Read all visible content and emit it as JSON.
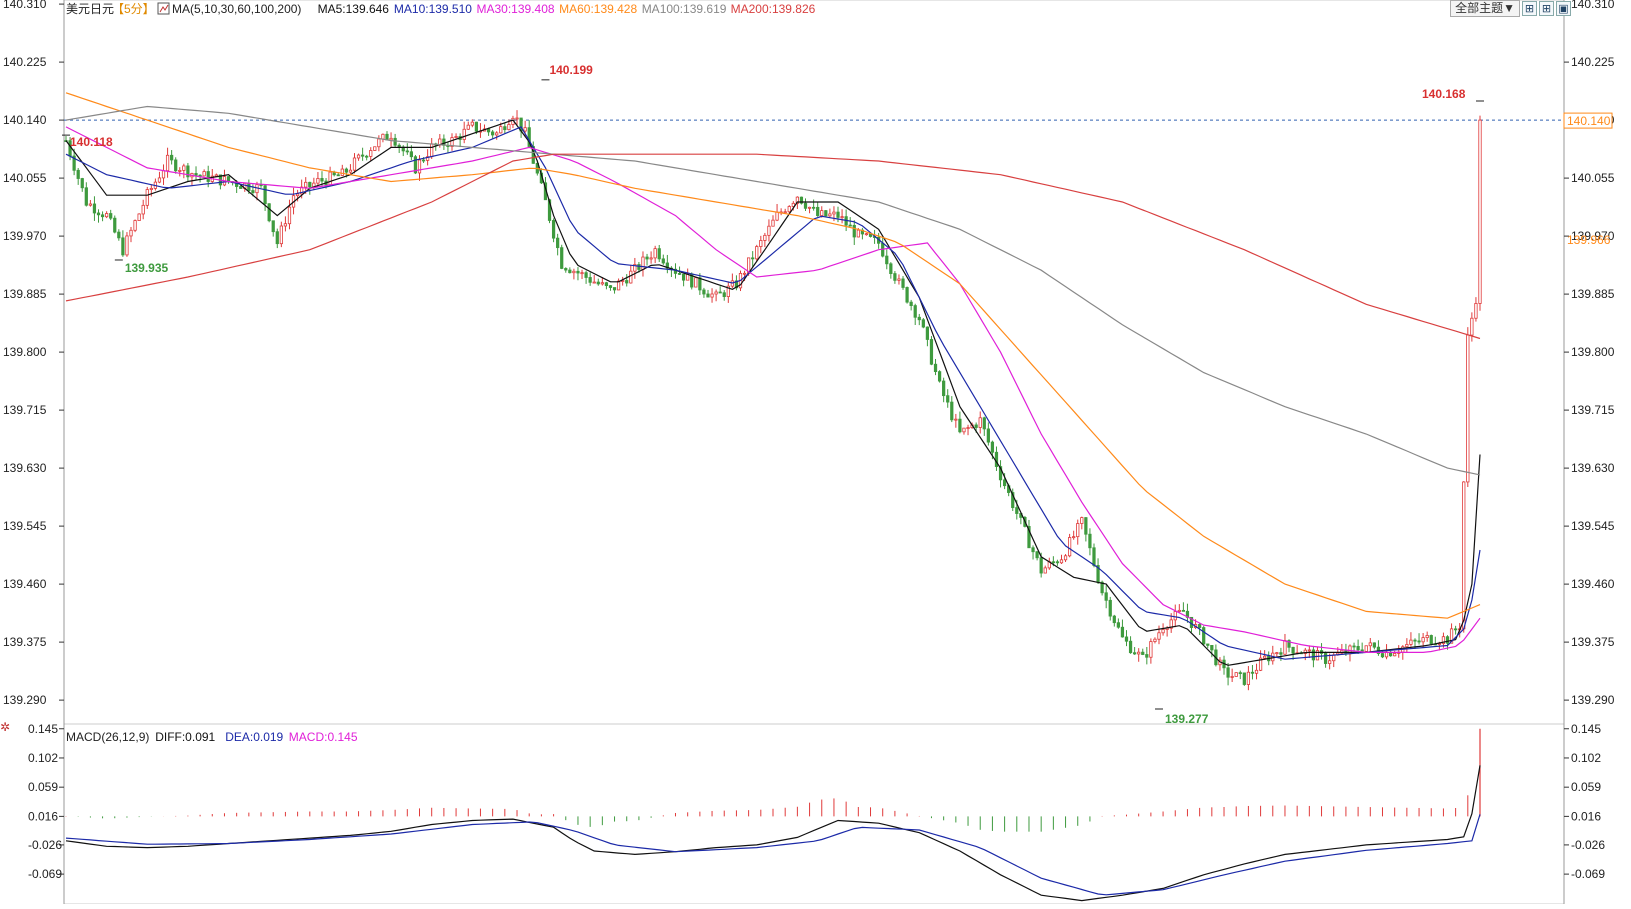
{
  "header": {
    "instrument": "美元日元",
    "period": "【5分】",
    "ma_legend": [
      {
        "label": "MA(5,10,30,60,100,200)",
        "color": "#222222"
      },
      {
        "label": "MA5:139.646",
        "color": "#111111"
      },
      {
        "label": "MA10:139.510",
        "color": "#1c2aa8"
      },
      {
        "label": "MA30:139.408",
        "color": "#e020d8"
      },
      {
        "label": "MA60:139.428",
        "color": "#ff8a1a"
      },
      {
        "label": "MA100:139.619",
        "color": "#888888"
      },
      {
        "label": "MA200:139.826",
        "color": "#d84040"
      }
    ],
    "theme_button": "全部主题▼",
    "toolbar_icons": [
      "grid-icon",
      "grid-icon",
      "window-icon"
    ]
  },
  "macd_legend": [
    {
      "label": "MACD(26,12,9)",
      "color": "#222222"
    },
    {
      "label": "DIFF:0.091",
      "color": "#111111"
    },
    {
      "label": "DEA:0.019",
      "color": "#1c2aa8"
    },
    {
      "label": "MACD:0.145",
      "color": "#e020d8"
    }
  ],
  "annotations": {
    "high_label": "140.199",
    "low_label": "139.277",
    "left_label_red": "140.118",
    "left_label_green": "139.935",
    "last_high_label": "140.168",
    "last_price_tag": "140.140",
    "ma_tag": "139.966"
  },
  "colors": {
    "up": "#e03a3a",
    "down": "#3e9a3e",
    "grid": "#dddddd",
    "axis": "#333333"
  },
  "chart_data": [
    {
      "type": "candlestick",
      "title": "美元日元【5分】",
      "y_ticks": [
        "140.310",
        "140.225",
        "140.140",
        "140.055",
        "139.970",
        "139.885",
        "139.800",
        "139.715",
        "139.630",
        "139.545",
        "139.460",
        "139.375",
        "139.290"
      ],
      "ylim": [
        139.255,
        140.316
      ],
      "current_price": 140.14,
      "close_anchors": [
        [
          0,
          140.11
        ],
        [
          5,
          140.02
        ],
        [
          10,
          140.0
        ],
        [
          14,
          139.95
        ],
        [
          20,
          140.03
        ],
        [
          25,
          140.08
        ],
        [
          32,
          140.06
        ],
        [
          40,
          140.05
        ],
        [
          48,
          140.04
        ],
        [
          52,
          139.96
        ],
        [
          56,
          140.03
        ],
        [
          62,
          140.05
        ],
        [
          68,
          140.06
        ],
        [
          75,
          140.1
        ],
        [
          80,
          140.12
        ],
        [
          86,
          140.07
        ],
        [
          90,
          140.1
        ],
        [
          95,
          140.11
        ],
        [
          100,
          140.13
        ],
        [
          106,
          140.12
        ],
        [
          110,
          140.15
        ],
        [
          113,
          140.12
        ],
        [
          118,
          140.02
        ],
        [
          122,
          139.93
        ],
        [
          128,
          139.91
        ],
        [
          134,
          139.89
        ],
        [
          140,
          139.92
        ],
        [
          145,
          139.95
        ],
        [
          150,
          139.92
        ],
        [
          155,
          139.9
        ],
        [
          160,
          139.88
        ],
        [
          165,
          139.9
        ],
        [
          170,
          139.95
        ],
        [
          175,
          140.0
        ],
        [
          180,
          140.03
        ],
        [
          185,
          140.0
        ],
        [
          190,
          140.0
        ],
        [
          195,
          139.97
        ],
        [
          200,
          139.96
        ],
        [
          205,
          139.9
        ],
        [
          210,
          139.85
        ],
        [
          215,
          139.75
        ],
        [
          220,
          139.68
        ],
        [
          225,
          139.7
        ],
        [
          230,
          139.62
        ],
        [
          235,
          139.55
        ],
        [
          240,
          139.48
        ],
        [
          245,
          139.5
        ],
        [
          250,
          139.55
        ],
        [
          255,
          139.45
        ],
        [
          260,
          139.38
        ],
        [
          265,
          139.35
        ],
        [
          270,
          139.4
        ],
        [
          275,
          139.42
        ],
        [
          280,
          139.38
        ],
        [
          285,
          139.33
        ],
        [
          290,
          139.32
        ],
        [
          295,
          139.35
        ],
        [
          300,
          139.37
        ],
        [
          305,
          139.36
        ],
        [
          310,
          139.35
        ],
        [
          315,
          139.36
        ],
        [
          320,
          139.37
        ],
        [
          325,
          139.36
        ],
        [
          330,
          139.37
        ],
        [
          335,
          139.38
        ],
        [
          340,
          139.38
        ],
        [
          343,
          139.4
        ],
        [
          345,
          139.82
        ],
        [
          347,
          139.88
        ],
        [
          348,
          140.14
        ]
      ],
      "ma_anchors": {
        "MA5": [
          [
            0,
            140.11
          ],
          [
            10,
            140.03
          ],
          [
            20,
            140.03
          ],
          [
            30,
            140.05
          ],
          [
            40,
            140.06
          ],
          [
            52,
            140.0
          ],
          [
            60,
            140.04
          ],
          [
            70,
            140.06
          ],
          [
            80,
            140.1
          ],
          [
            90,
            140.1
          ],
          [
            100,
            140.12
          ],
          [
            110,
            140.14
          ],
          [
            115,
            140.1
          ],
          [
            120,
            140.0
          ],
          [
            125,
            139.93
          ],
          [
            135,
            139.9
          ],
          [
            145,
            139.93
          ],
          [
            155,
            139.91
          ],
          [
            165,
            139.89
          ],
          [
            172,
            139.95
          ],
          [
            180,
            140.02
          ],
          [
            190,
            140.02
          ],
          [
            200,
            139.98
          ],
          [
            210,
            139.88
          ],
          [
            220,
            139.72
          ],
          [
            230,
            139.63
          ],
          [
            240,
            139.5
          ],
          [
            248,
            139.47
          ],
          [
            256,
            139.46
          ],
          [
            265,
            139.39
          ],
          [
            275,
            139.4
          ],
          [
            285,
            139.34
          ],
          [
            295,
            139.35
          ],
          [
            305,
            139.36
          ],
          [
            320,
            139.36
          ],
          [
            335,
            139.37
          ],
          [
            343,
            139.38
          ],
          [
            346,
            139.46
          ],
          [
            348,
            139.65
          ]
        ],
        "MA10": [
          [
            0,
            140.09
          ],
          [
            10,
            140.06
          ],
          [
            25,
            140.04
          ],
          [
            40,
            140.05
          ],
          [
            55,
            140.03
          ],
          [
            70,
            140.05
          ],
          [
            85,
            140.08
          ],
          [
            100,
            140.1
          ],
          [
            112,
            140.13
          ],
          [
            118,
            140.07
          ],
          [
            125,
            139.98
          ],
          [
            135,
            139.93
          ],
          [
            150,
            139.92
          ],
          [
            165,
            139.9
          ],
          [
            175,
            139.95
          ],
          [
            185,
            140.0
          ],
          [
            195,
            139.99
          ],
          [
            205,
            139.94
          ],
          [
            215,
            139.82
          ],
          [
            225,
            139.72
          ],
          [
            235,
            139.62
          ],
          [
            245,
            139.52
          ],
          [
            255,
            139.48
          ],
          [
            265,
            139.42
          ],
          [
            275,
            139.41
          ],
          [
            285,
            139.37
          ],
          [
            300,
            139.35
          ],
          [
            320,
            139.36
          ],
          [
            340,
            139.37
          ],
          [
            345,
            139.4
          ],
          [
            348,
            139.51
          ]
        ],
        "MA30": [
          [
            0,
            140.13
          ],
          [
            10,
            140.1
          ],
          [
            20,
            140.07
          ],
          [
            40,
            140.05
          ],
          [
            60,
            140.04
          ],
          [
            80,
            140.06
          ],
          [
            100,
            140.08
          ],
          [
            114,
            140.1
          ],
          [
            125,
            140.08
          ],
          [
            135,
            140.05
          ],
          [
            150,
            140.0
          ],
          [
            160,
            139.95
          ],
          [
            170,
            139.91
          ],
          [
            185,
            139.92
          ],
          [
            200,
            139.95
          ],
          [
            212,
            139.96
          ],
          [
            220,
            139.9
          ],
          [
            230,
            139.8
          ],
          [
            240,
            139.68
          ],
          [
            250,
            139.58
          ],
          [
            260,
            139.49
          ],
          [
            270,
            139.43
          ],
          [
            280,
            139.4
          ],
          [
            290,
            139.39
          ],
          [
            305,
            139.37
          ],
          [
            320,
            139.36
          ],
          [
            335,
            139.36
          ],
          [
            343,
            139.37
          ],
          [
            348,
            139.41
          ]
        ],
        "MA60": [
          [
            0,
            140.18
          ],
          [
            20,
            140.14
          ],
          [
            40,
            140.1
          ],
          [
            60,
            140.07
          ],
          [
            80,
            140.05
          ],
          [
            100,
            140.06
          ],
          [
            115,
            140.07
          ],
          [
            125,
            140.06
          ],
          [
            140,
            140.04
          ],
          [
            160,
            140.02
          ],
          [
            180,
            140.0
          ],
          [
            195,
            139.98
          ],
          [
            205,
            139.96
          ],
          [
            220,
            139.9
          ],
          [
            235,
            139.8
          ],
          [
            250,
            139.7
          ],
          [
            265,
            139.6
          ],
          [
            280,
            139.53
          ],
          [
            300,
            139.46
          ],
          [
            320,
            139.42
          ],
          [
            340,
            139.41
          ],
          [
            348,
            139.43
          ]
        ],
        "MA100": [
          [
            0,
            140.14
          ],
          [
            20,
            140.16
          ],
          [
            40,
            140.15
          ],
          [
            60,
            140.13
          ],
          [
            80,
            140.11
          ],
          [
            100,
            140.1
          ],
          [
            120,
            140.09
          ],
          [
            140,
            140.08
          ],
          [
            160,
            140.06
          ],
          [
            180,
            140.04
          ],
          [
            200,
            140.02
          ],
          [
            220,
            139.98
          ],
          [
            240,
            139.92
          ],
          [
            260,
            139.84
          ],
          [
            280,
            139.77
          ],
          [
            300,
            139.72
          ],
          [
            320,
            139.68
          ],
          [
            340,
            139.63
          ],
          [
            348,
            139.62
          ]
        ],
        "MA200": [
          [
            0,
            139.875
          ],
          [
            30,
            139.91
          ],
          [
            60,
            139.95
          ],
          [
            90,
            140.02
          ],
          [
            110,
            140.08
          ],
          [
            120,
            140.09
          ],
          [
            140,
            140.09
          ],
          [
            170,
            140.09
          ],
          [
            200,
            140.08
          ],
          [
            230,
            140.06
          ],
          [
            260,
            140.02
          ],
          [
            290,
            139.95
          ],
          [
            320,
            139.87
          ],
          [
            348,
            139.82
          ]
        ]
      },
      "ma_colors": {
        "MA5": "#111111",
        "MA10": "#1c2aa8",
        "MA30": "#e020d8",
        "MA60": "#ff8a1a",
        "MA100": "#888888",
        "MA200": "#d84040"
      },
      "bar_count": 349,
      "high_marker": {
        "bar": 118,
        "value": 140.199
      },
      "low_marker": {
        "bar": 269,
        "value": 139.277
      },
      "left_red_marker": {
        "bar": 0,
        "value": 140.118
      },
      "left_green_marker": {
        "bar": 13,
        "value": 139.935
      },
      "last_high_marker": {
        "bar": 348,
        "value": 140.168
      }
    },
    {
      "type": "macd",
      "title": "MACD(26,12,9)",
      "y_ticks": [
        "0.145",
        "0.102",
        "0.059",
        "0.016",
        "-0.026",
        "-0.069"
      ],
      "ylim": [
        -0.113,
        0.152
      ],
      "diff_anchors": [
        [
          0,
          -0.02
        ],
        [
          10,
          -0.028
        ],
        [
          20,
          -0.03
        ],
        [
          30,
          -0.028
        ],
        [
          40,
          -0.024
        ],
        [
          50,
          -0.02
        ],
        [
          60,
          -0.016
        ],
        [
          70,
          -0.012
        ],
        [
          80,
          -0.006
        ],
        [
          90,
          0.004
        ],
        [
          100,
          0.01
        ],
        [
          110,
          0.012
        ],
        [
          120,
          0.0
        ],
        [
          125,
          -0.02
        ],
        [
          130,
          -0.035
        ],
        [
          140,
          -0.04
        ],
        [
          150,
          -0.036
        ],
        [
          160,
          -0.03
        ],
        [
          170,
          -0.026
        ],
        [
          180,
          -0.015
        ],
        [
          190,
          0.01
        ],
        [
          200,
          0.006
        ],
        [
          210,
          -0.008
        ],
        [
          220,
          -0.035
        ],
        [
          230,
          -0.07
        ],
        [
          240,
          -0.1
        ],
        [
          250,
          -0.108
        ],
        [
          260,
          -0.1
        ],
        [
          270,
          -0.09
        ],
        [
          280,
          -0.07
        ],
        [
          290,
          -0.054
        ],
        [
          300,
          -0.04
        ],
        [
          310,
          -0.033
        ],
        [
          320,
          -0.026
        ],
        [
          330,
          -0.022
        ],
        [
          340,
          -0.018
        ],
        [
          344,
          -0.014
        ],
        [
          346,
          0.02
        ],
        [
          348,
          0.091
        ]
      ],
      "dea_anchors": [
        [
          0,
          -0.016
        ],
        [
          20,
          -0.025
        ],
        [
          40,
          -0.024
        ],
        [
          60,
          -0.018
        ],
        [
          80,
          -0.01
        ],
        [
          100,
          0.004
        ],
        [
          115,
          0.008
        ],
        [
          125,
          -0.005
        ],
        [
          135,
          -0.026
        ],
        [
          150,
          -0.036
        ],
        [
          170,
          -0.03
        ],
        [
          185,
          -0.02
        ],
        [
          195,
          0.0
        ],
        [
          210,
          -0.004
        ],
        [
          225,
          -0.03
        ],
        [
          240,
          -0.075
        ],
        [
          255,
          -0.1
        ],
        [
          270,
          -0.092
        ],
        [
          285,
          -0.07
        ],
        [
          300,
          -0.05
        ],
        [
          320,
          -0.034
        ],
        [
          340,
          -0.024
        ],
        [
          346,
          -0.02
        ],
        [
          348,
          0.019
        ]
      ],
      "current_macd": 0.145
    }
  ]
}
